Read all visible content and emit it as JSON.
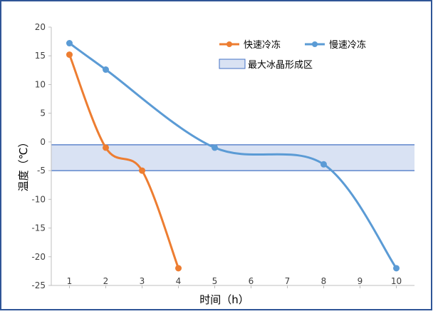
{
  "chart_data": {
    "type": "line",
    "title": "",
    "xlabel": "时间（h）",
    "ylabel": "温度（℃）",
    "xlim": [
      0.5,
      10.5
    ],
    "ylim": [
      -25,
      20
    ],
    "xticks": [
      1,
      2,
      3,
      4,
      5,
      6,
      7,
      8,
      9,
      10
    ],
    "yticks": [
      20,
      15,
      10,
      5,
      0,
      -5,
      -10,
      -15,
      -20,
      -25
    ],
    "grid": false,
    "legend_position": "top-right",
    "band": {
      "label": "最大冰晶形成区",
      "y_from": -5,
      "y_to": -0.5,
      "color": "#d9e2f3",
      "edge_color": "#4472c4"
    },
    "series": [
      {
        "name": "快速冷冻",
        "color": "#ed7d31",
        "x": [
          1,
          2,
          3,
          4
        ],
        "y": [
          15.2,
          -1,
          -5,
          -22
        ]
      },
      {
        "name": "慢速冷冻",
        "color": "#5b9bd5",
        "x": [
          1,
          2,
          5,
          8,
          10
        ],
        "y": [
          17.2,
          12.6,
          -1,
          -3.9,
          -22
        ]
      }
    ]
  }
}
